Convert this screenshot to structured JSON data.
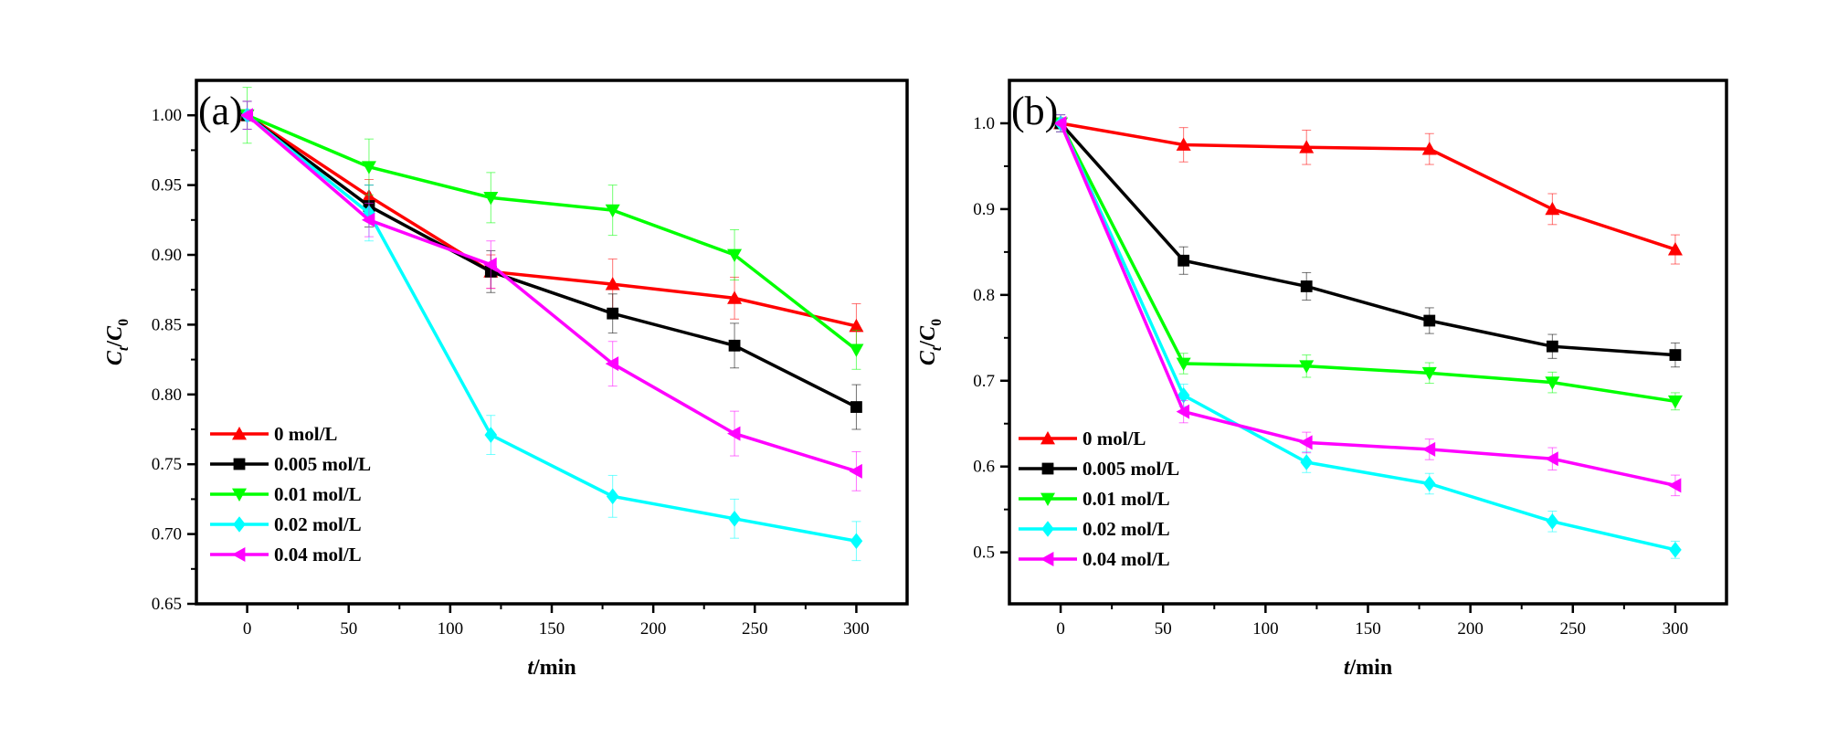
{
  "chart_data": [
    {
      "type": "line",
      "panel_label": "(a)",
      "xlabel_italic": "t",
      "xlabel_rest": "/min",
      "ylabel": {
        "c": "C",
        "csub": "t",
        "slash": "/",
        "c2": "C",
        "c2sub": "0"
      },
      "xlim": [
        -25,
        325
      ],
      "ylim": [
        0.65,
        1.025
      ],
      "xticks": [
        0,
        50,
        100,
        150,
        200,
        250,
        300
      ],
      "yticks": [
        0.65,
        0.7,
        0.75,
        0.8,
        0.85,
        0.9,
        0.95,
        1.0
      ],
      "ytick_labels": [
        "0.65",
        "0.70",
        "0.75",
        "0.80",
        "0.85",
        "0.90",
        "0.95",
        "1.00"
      ],
      "legend_position": "bottom-left",
      "x": [
        0,
        60,
        120,
        180,
        240,
        300
      ],
      "series": [
        {
          "name": "0 mol/L",
          "color": "#ff0000",
          "marker": "triangle-up",
          "values": [
            1.0,
            0.942,
            0.888,
            0.879,
            0.869,
            0.849
          ],
          "errors": [
            0.01,
            0.012,
            0.012,
            0.018,
            0.015,
            0.016
          ]
        },
        {
          "name": "0.005 mol/L",
          "color": "#000000",
          "marker": "square",
          "values": [
            1.0,
            0.935,
            0.888,
            0.858,
            0.835,
            0.791
          ],
          "errors": [
            0.01,
            0.015,
            0.015,
            0.014,
            0.016,
            0.016
          ]
        },
        {
          "name": "0.01 mol/L",
          "color": "#00ff00",
          "marker": "triangle-down",
          "values": [
            1.0,
            0.963,
            0.941,
            0.932,
            0.9,
            0.832
          ],
          "errors": [
            0.02,
            0.02,
            0.018,
            0.018,
            0.018,
            0.014
          ]
        },
        {
          "name": "0.02 mol/L",
          "color": "#00ffff",
          "marker": "diamond",
          "values": [
            1.0,
            0.93,
            0.771,
            0.727,
            0.711,
            0.695
          ],
          "errors": [
            0.01,
            0.02,
            0.014,
            0.015,
            0.014,
            0.014
          ]
        },
        {
          "name": "0.04 mol/L",
          "color": "#ff00ff",
          "marker": "triangle-left",
          "values": [
            1.0,
            0.925,
            0.893,
            0.822,
            0.772,
            0.745
          ],
          "errors": [
            0.01,
            0.012,
            0.017,
            0.016,
            0.016,
            0.014
          ]
        }
      ]
    },
    {
      "type": "line",
      "panel_label": "(b)",
      "xlabel_italic": "t",
      "xlabel_rest": "/min",
      "ylabel": {
        "c": "C",
        "csub": "t",
        "slash": "/",
        "c2": "C",
        "c2sub": "0"
      },
      "xlim": [
        -25,
        325
      ],
      "ylim": [
        0.44,
        1.05
      ],
      "xticks": [
        0,
        50,
        100,
        150,
        200,
        250,
        300
      ],
      "yticks": [
        0.5,
        0.6,
        0.7,
        0.8,
        0.9,
        1.0
      ],
      "ytick_labels": [
        "0.5",
        "0.6",
        "0.7",
        "0.8",
        "0.9",
        "1.0"
      ],
      "legend_position": "bottom-left",
      "x": [
        0,
        60,
        120,
        180,
        240,
        300
      ],
      "series": [
        {
          "name": "0 mol/L",
          "color": "#ff0000",
          "marker": "triangle-up",
          "values": [
            1.0,
            0.975,
            0.972,
            0.97,
            0.9,
            0.853
          ],
          "errors": [
            0.01,
            0.02,
            0.02,
            0.018,
            0.018,
            0.017
          ]
        },
        {
          "name": "0.005 mol/L",
          "color": "#000000",
          "marker": "square",
          "values": [
            1.0,
            0.84,
            0.81,
            0.77,
            0.74,
            0.73
          ],
          "errors": [
            0.01,
            0.016,
            0.016,
            0.015,
            0.014,
            0.014
          ]
        },
        {
          "name": "0.01 mol/L",
          "color": "#00ff00",
          "marker": "triangle-down",
          "values": [
            1.0,
            0.72,
            0.717,
            0.709,
            0.698,
            0.676
          ],
          "errors": [
            0.01,
            0.012,
            0.013,
            0.012,
            0.012,
            0.01
          ]
        },
        {
          "name": "0.02 mol/L",
          "color": "#00ffff",
          "marker": "diamond",
          "values": [
            1.0,
            0.683,
            0.605,
            0.58,
            0.536,
            0.503
          ],
          "errors": [
            0.01,
            0.013,
            0.012,
            0.012,
            0.012,
            0.01
          ]
        },
        {
          "name": "0.04 mol/L",
          "color": "#ff00ff",
          "marker": "triangle-left",
          "values": [
            1.0,
            0.664,
            0.628,
            0.62,
            0.609,
            0.578
          ],
          "errors": [
            0.01,
            0.013,
            0.012,
            0.012,
            0.013,
            0.012
          ]
        }
      ]
    }
  ]
}
